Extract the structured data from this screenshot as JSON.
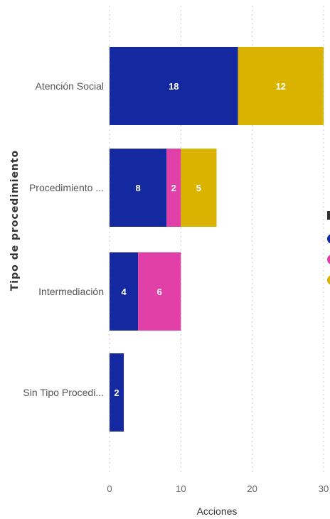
{
  "chart_data": {
    "type": "bar",
    "orientation": "horizontal",
    "stacked": true,
    "categories": [
      "Atención Social",
      "Procedimiento ...",
      "Intermediación",
      "Sin Tipo Procedi..."
    ],
    "series": [
      {
        "color": "#1428a0",
        "values": [
          18,
          8,
          4,
          2
        ]
      },
      {
        "color": "#e040a8",
        "values": [
          0,
          2,
          6,
          0
        ]
      },
      {
        "color": "#d9b300",
        "values": [
          12,
          5,
          0,
          0
        ]
      }
    ],
    "xlabel": "Acciones",
    "ylabel": "Tipo de procedimiento",
    "xlim": [
      0,
      30
    ],
    "xticks": [
      0,
      10,
      20,
      30
    ],
    "grid": "vertical-dotted",
    "legend": "right (partially visible)"
  }
}
